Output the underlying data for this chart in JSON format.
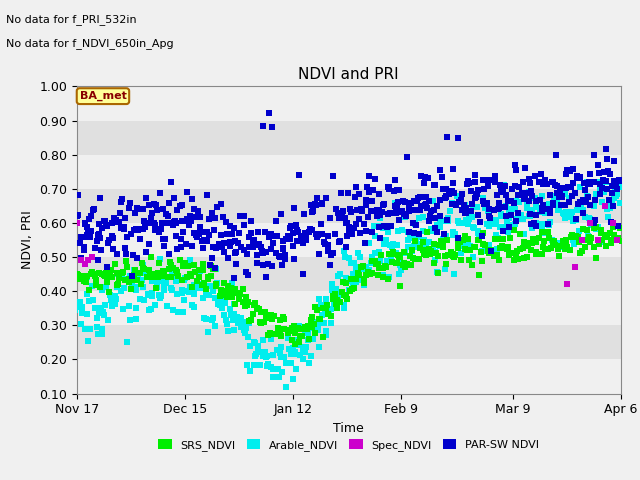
{
  "title": "NDVI and PRI",
  "xlabel": "Time",
  "ylabel": "NDVI, PRI",
  "annotations": [
    "No data for f_PRI_532in",
    "No data for f_NDVI_650in_Apg"
  ],
  "box_label": "BA_met",
  "ylim": [
    0.1,
    1.0
  ],
  "yticks": [
    0.1,
    0.2,
    0.3,
    0.4,
    0.5,
    0.6,
    0.7,
    0.8,
    0.9,
    1.0
  ],
  "xtick_labels": [
    "Nov 17",
    "Dec 15",
    "Jan 12",
    "Feb 9",
    "Mar 9",
    "Apr 6"
  ],
  "colors": {
    "SRS_NDVI": "#00ee00",
    "Arable_NDVI": "#00eeee",
    "Spec_NDVI": "#cc00cc",
    "PAR_SW_NDVI": "#0000cc"
  },
  "background_color": "#f0f0f0",
  "band_colors": [
    "#f0f0f0",
    "#e0e0e0"
  ],
  "marker_size": 4
}
